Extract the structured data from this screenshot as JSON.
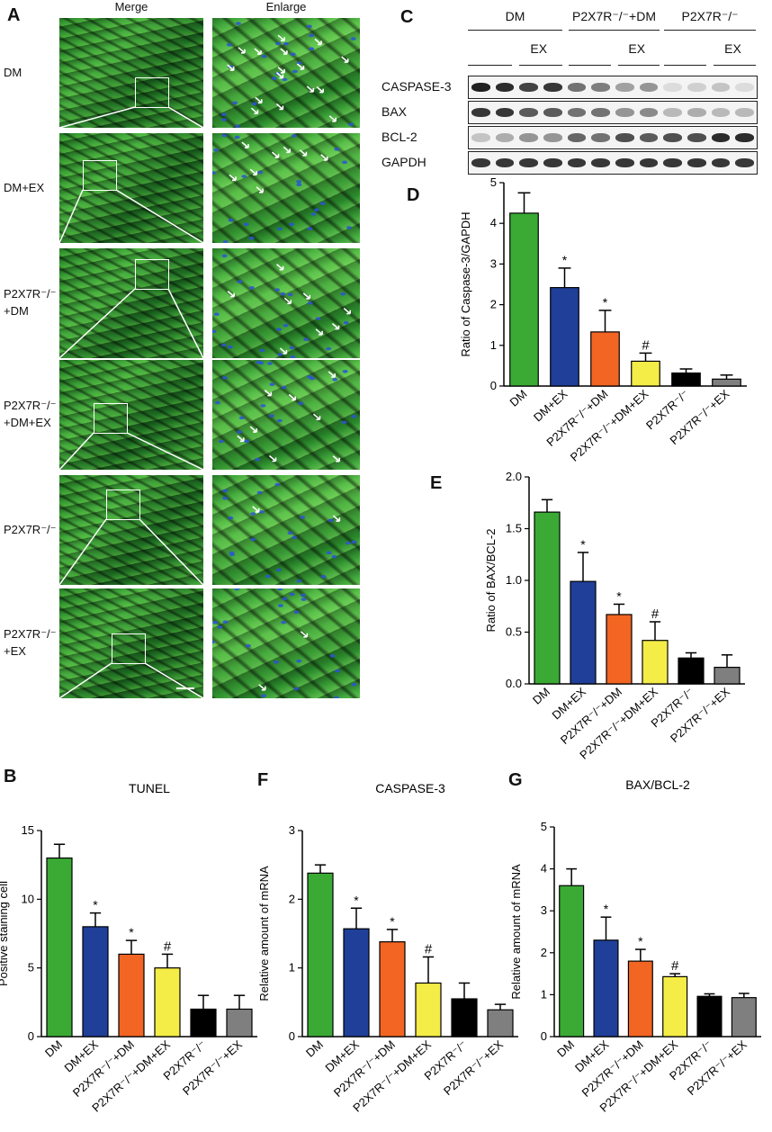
{
  "panels": {
    "A": "A",
    "B": "B",
    "C": "C",
    "D": "D",
    "E": "E",
    "F": "F",
    "G": "G"
  },
  "micrographs": {
    "col_merge": "Merge",
    "col_enlarge": "Enlarge",
    "rows": [
      {
        "label_lines": [
          "DM"
        ],
        "arrows": 16
      },
      {
        "label_lines": [
          "DM+EX"
        ],
        "arrows": 8
      },
      {
        "label_lines": [
          "P2X7R⁻/⁻",
          "+DM"
        ],
        "arrows": 8
      },
      {
        "label_lines": [
          "P2X7R⁻/⁻",
          "+DM+EX"
        ],
        "arrows": 8
      },
      {
        "label_lines": [
          "P2X7R⁻/⁻"
        ],
        "arrows": 2
      },
      {
        "label_lines": [
          "P2X7R⁻/⁻",
          "+EX"
        ],
        "arrows": 2
      }
    ]
  },
  "western": {
    "groups": [
      "DM",
      "P2X7R⁻/⁻+DM",
      "P2X7R⁻/⁻"
    ],
    "ex_label": "EX",
    "rows": [
      {
        "name": "CASPASE-3",
        "intensity": [
          0.95,
          0.9,
          0.8,
          0.85,
          0.6,
          0.55,
          0.4,
          0.45,
          0.15,
          0.2,
          0.25,
          0.15
        ]
      },
      {
        "name": "BAX",
        "intensity": [
          0.85,
          0.85,
          0.7,
          0.7,
          0.6,
          0.6,
          0.45,
          0.5,
          0.3,
          0.35,
          0.3,
          0.3
        ]
      },
      {
        "name": "BCL-2",
        "intensity": [
          0.25,
          0.35,
          0.45,
          0.45,
          0.65,
          0.6,
          0.75,
          0.7,
          0.75,
          0.75,
          0.9,
          0.9
        ]
      },
      {
        "name": "GAPDH",
        "intensity": [
          0.85,
          0.85,
          0.85,
          0.85,
          0.85,
          0.85,
          0.85,
          0.85,
          0.85,
          0.85,
          0.85,
          0.85
        ]
      }
    ]
  },
  "chart_data": [
    {
      "id": "B",
      "type": "bar",
      "title": "TUNEL",
      "ylabel": "Positive staining cell",
      "xlabel": "",
      "ylim": [
        0,
        15
      ],
      "yticks": [
        "0",
        "5",
        "10",
        "15"
      ],
      "categories": [
        "DM",
        "DM+EX",
        "P2X7R⁻/⁻+DM",
        "P2X7R⁻/⁻+DM+EX",
        "P2X7R⁻/⁻",
        "P2X7R⁻/⁻+EX"
      ],
      "values": [
        13,
        8,
        6,
        5,
        2,
        2
      ],
      "errors": [
        1,
        1,
        1,
        1,
        1,
        1
      ],
      "marks": [
        "",
        "*",
        "*",
        "#",
        "",
        ""
      ],
      "colors": [
        "#3aaa35",
        "#1f3f99",
        "#f26522",
        "#f4ec47",
        "#000000",
        "#7f7f7f"
      ]
    },
    {
      "id": "D",
      "type": "bar",
      "title": "",
      "ylabel": "Ratio of Caspase-3/GAPDH",
      "xlabel": "",
      "ylim": [
        0,
        5
      ],
      "yticks": [
        "0",
        "1",
        "2",
        "3",
        "4",
        "5"
      ],
      "categories": [
        "DM",
        "DM+EX",
        "P2X7R⁻/⁻+DM",
        "P2X7R⁻/⁻+DM+EX",
        "P2X7R⁻/⁻",
        "P2X7R⁻/⁻+EX"
      ],
      "values": [
        4.25,
        2.42,
        1.33,
        0.61,
        0.32,
        0.17
      ],
      "errors": [
        0.5,
        0.48,
        0.53,
        0.2,
        0.1,
        0.1
      ],
      "marks": [
        "",
        "*",
        "*",
        "#",
        "",
        ""
      ],
      "colors": [
        "#3aaa35",
        "#1f3f99",
        "#f26522",
        "#f4ec47",
        "#000000",
        "#7f7f7f"
      ]
    },
    {
      "id": "E",
      "type": "bar",
      "title": "",
      "ylabel": "Ratio of BAX/BCL-2",
      "xlabel": "",
      "ylim": [
        0,
        2.0
      ],
      "yticks": [
        "0.0",
        "0.5",
        "1.0",
        "1.5",
        "2.0"
      ],
      "categories": [
        "DM",
        "DM+EX",
        "P2X7R⁻/⁻+DM",
        "P2X7R⁻/⁻+DM+EX",
        "P2X7R⁻/⁻",
        "P2X7R⁻/⁻+EX"
      ],
      "values": [
        1.66,
        0.99,
        0.67,
        0.42,
        0.25,
        0.16
      ],
      "errors": [
        0.12,
        0.28,
        0.1,
        0.18,
        0.05,
        0.12
      ],
      "marks": [
        "",
        "*",
        "*",
        "#",
        "",
        ""
      ],
      "colors": [
        "#3aaa35",
        "#1f3f99",
        "#f26522",
        "#f4ec47",
        "#000000",
        "#7f7f7f"
      ]
    },
    {
      "id": "F",
      "type": "bar",
      "title": "CASPASE-3",
      "ylabel": "Relative amount of mRNA",
      "xlabel": "",
      "ylim": [
        0,
        3
      ],
      "yticks": [
        "0",
        "1",
        "2",
        "3"
      ],
      "categories": [
        "DM",
        "DM+EX",
        "P2X7R⁻/⁻+DM",
        "P2X7R⁻/⁻+DM+EX",
        "P2X7R⁻/⁻",
        "P2X7R⁻/⁻+EX"
      ],
      "values": [
        2.38,
        1.57,
        1.38,
        0.78,
        0.55,
        0.39
      ],
      "errors": [
        0.12,
        0.3,
        0.18,
        0.38,
        0.23,
        0.08
      ],
      "marks": [
        "",
        "*",
        "*",
        "#",
        "",
        ""
      ],
      "colors": [
        "#3aaa35",
        "#1f3f99",
        "#f26522",
        "#f4ec47",
        "#000000",
        "#7f7f7f"
      ]
    },
    {
      "id": "G",
      "type": "bar",
      "title": "BAX/BCL-2",
      "ylabel": "Relative amount of mRNA",
      "xlabel": "",
      "ylim": [
        0,
        5
      ],
      "yticks": [
        "0",
        "1",
        "2",
        "3",
        "4",
        "5"
      ],
      "categories": [
        "DM",
        "DM+EX",
        "P2X7R⁻/⁻+DM",
        "P2X7R⁻/⁻+DM+EX",
        "P2X7R⁻/⁻",
        "P2X7R⁻/⁻+EX"
      ],
      "values": [
        3.6,
        2.3,
        1.8,
        1.43,
        0.96,
        0.93
      ],
      "errors": [
        0.4,
        0.55,
        0.28,
        0.07,
        0.06,
        0.1
      ],
      "marks": [
        "",
        "*",
        "*",
        "#",
        "",
        ""
      ],
      "colors": [
        "#3aaa35",
        "#1f3f99",
        "#f26522",
        "#f4ec47",
        "#000000",
        "#7f7f7f"
      ]
    }
  ]
}
